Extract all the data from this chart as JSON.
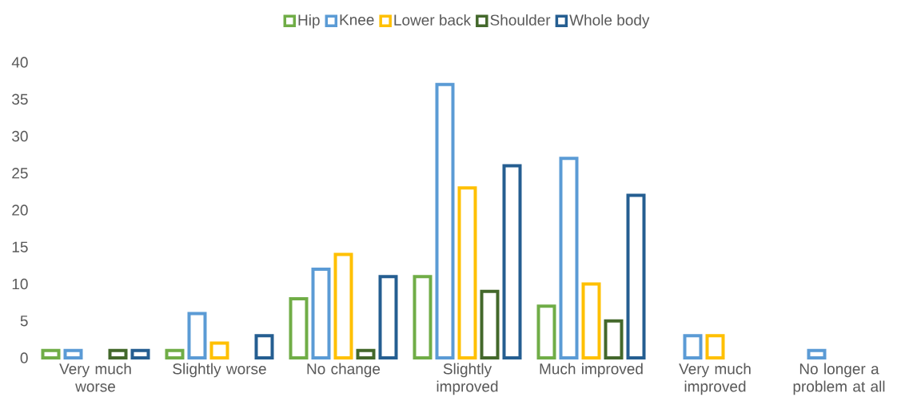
{
  "chart_data": {
    "type": "bar",
    "categories": [
      "Very much worse",
      "Slightly worse",
      "No change",
      "Slightly improved",
      "Much improved",
      "Very much improved",
      "No longer a problem at all"
    ],
    "series": [
      {
        "name": "Hip",
        "color": "#70ad47",
        "values": [
          1,
          1,
          8,
          11,
          7,
          null,
          null
        ]
      },
      {
        "name": "Knee",
        "color": "#5b9bd5",
        "values": [
          1,
          6,
          12,
          37,
          27,
          3,
          1
        ]
      },
      {
        "name": "Lower back",
        "color": "#ffc000",
        "values": [
          null,
          2,
          14,
          23,
          10,
          3,
          null
        ]
      },
      {
        "name": "Shoulder",
        "color": "#43682b",
        "values": [
          1,
          null,
          1,
          9,
          5,
          null,
          null
        ]
      },
      {
        "name": "Whole body",
        "color": "#255e91",
        "values": [
          1,
          3,
          11,
          26,
          22,
          null,
          null
        ]
      }
    ],
    "ylim": [
      0,
      40
    ],
    "yticks": [
      0,
      5,
      10,
      15,
      20,
      25,
      30,
      35,
      40
    ],
    "legend": "top"
  }
}
